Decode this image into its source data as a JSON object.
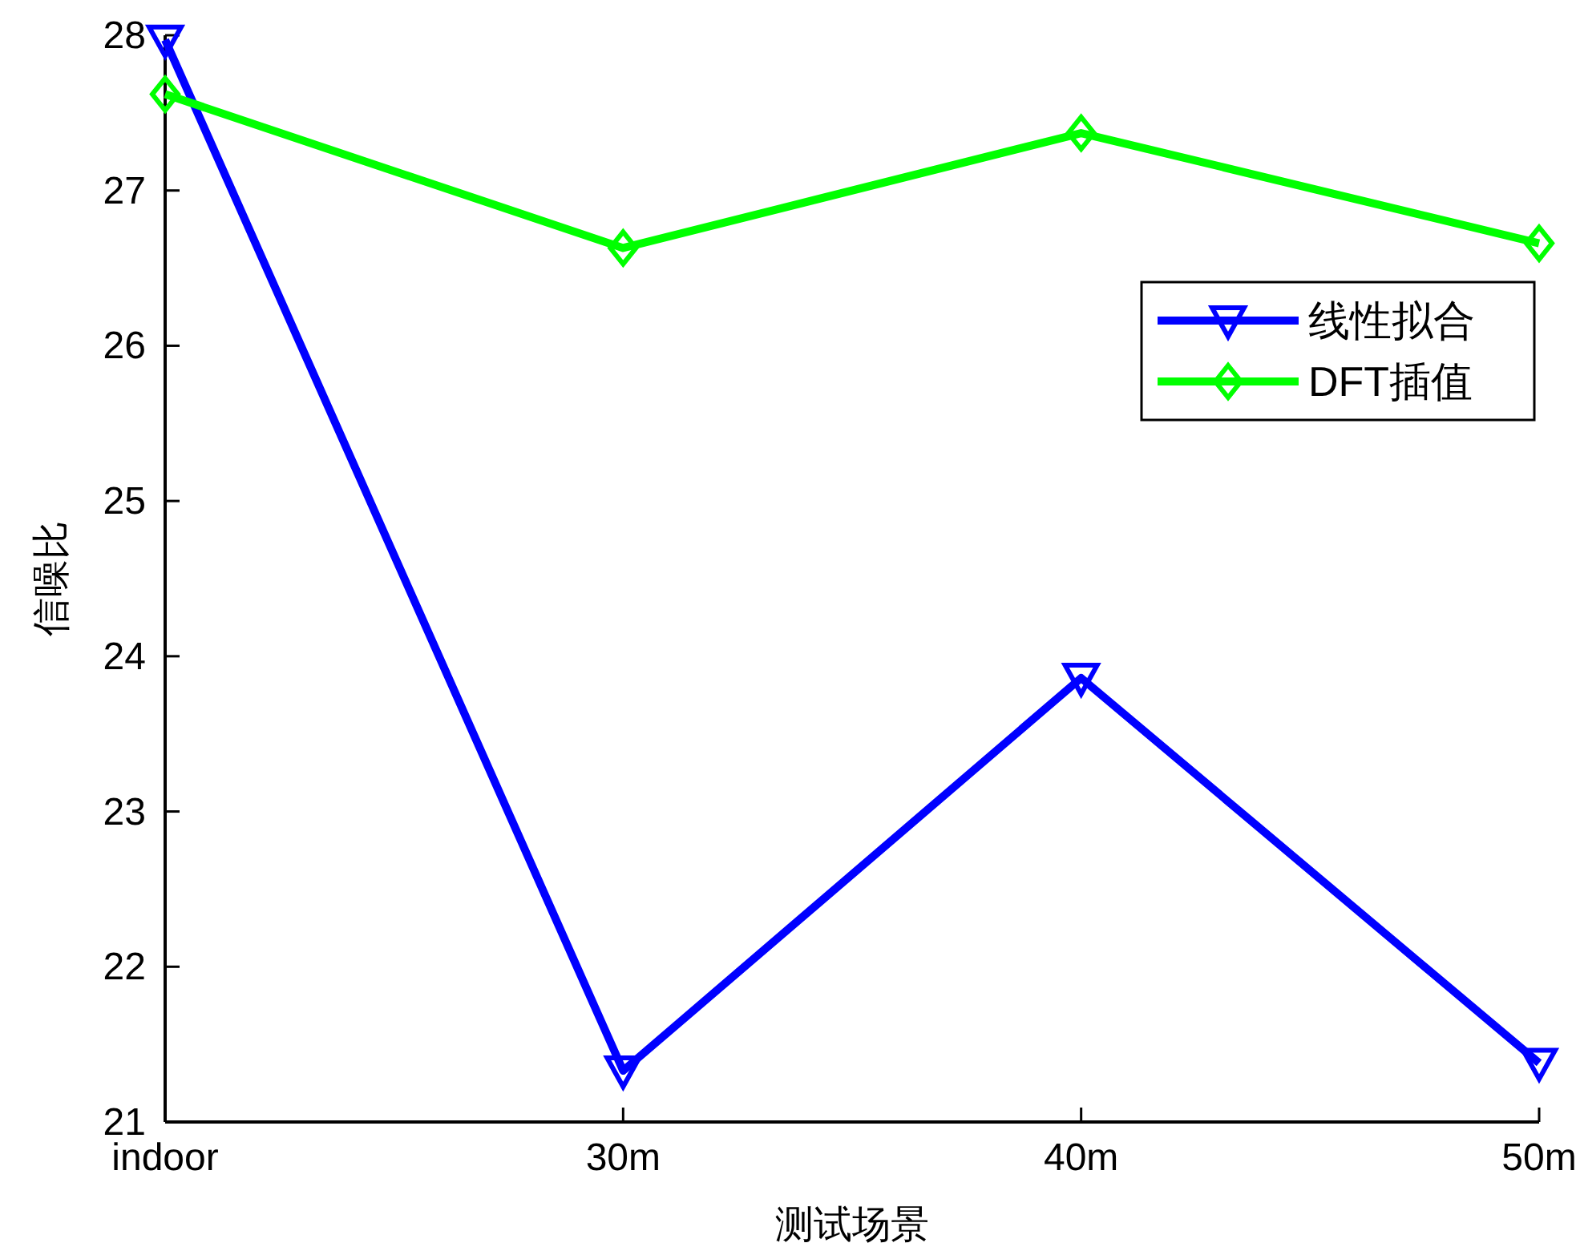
{
  "chart_data": {
    "type": "line",
    "xlabel": "测试场景",
    "ylabel": "信噪比",
    "categories": [
      "indoor",
      "30m",
      "40m",
      "50m"
    ],
    "series": [
      {
        "name": "线性拟合",
        "color": "#0000ff",
        "marker": "triangle",
        "values": [
          27.97,
          21.33,
          23.86,
          21.38
        ]
      },
      {
        "name": "DFT插值",
        "color": "#00ff00",
        "marker": "diamond",
        "values": [
          27.62,
          26.63,
          27.37,
          26.66
        ]
      }
    ],
    "ylim": [
      21,
      28
    ],
    "yticks": [
      21,
      22,
      23,
      24,
      25,
      26,
      27,
      28
    ],
    "legend": "top right",
    "line_style": "solid"
  }
}
